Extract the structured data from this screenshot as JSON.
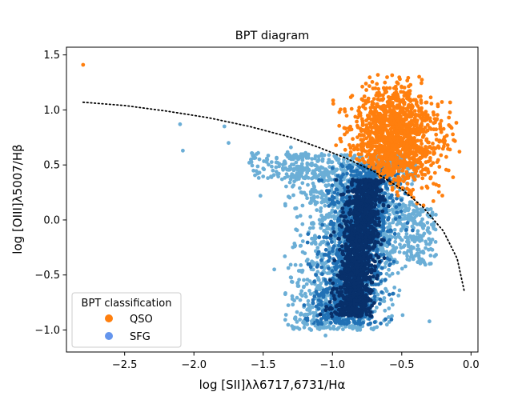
{
  "chart_data": {
    "type": "scatter",
    "title": "BPT diagram",
    "xlabel": "log [SII]λλ6717,6731/Hα",
    "ylabel": "log [OIII]λ5007/Hβ",
    "xlim": [
      -2.92,
      0.05
    ],
    "ylim": [
      -1.2,
      1.57
    ],
    "xticks": [
      -2.5,
      -2.0,
      -1.5,
      -1.0,
      -0.5,
      0.0
    ],
    "xtick_labels": [
      "−2.5",
      "−2.0",
      "−1.5",
      "−1.0",
      "−0.5",
      "0.0"
    ],
    "yticks": [
      -1.0,
      -0.5,
      0.0,
      0.5,
      1.0,
      1.5
    ],
    "ytick_labels": [
      "−1.0",
      "−0.5",
      "0.0",
      "0.5",
      "1.0",
      "1.5"
    ],
    "grid": false,
    "legend": {
      "title": "BPT classification",
      "placement": "lower-left"
    },
    "series": [
      {
        "name": "QSO",
        "color": "#ff7f0e",
        "cloud": {
          "center": [
            -0.55,
            0.75
          ],
          "spread": [
            0.16,
            0.24
          ],
          "extent_x": [
            -1.0,
            -0.02
          ],
          "extent_y": [
            0.08,
            1.32
          ]
        },
        "outliers": [
          [
            -2.8,
            1.41
          ],
          [
            -0.78,
            1.03
          ],
          [
            -0.95,
            0.98
          ],
          [
            -0.7,
            1.1
          ]
        ]
      },
      {
        "name": "SFG",
        "color": "#6495ed",
        "density_colors": [
          "#6baed6",
          "#2171b5",
          "#08306b"
        ],
        "cloud": {
          "ridge_x": [
            -0.95,
            -0.7
          ],
          "extent_x": [
            -1.3,
            -0.25
          ],
          "extent_y": [
            -1.0,
            0.6
          ]
        },
        "outliers": [
          [
            -2.1,
            0.87
          ],
          [
            -2.08,
            0.63
          ],
          [
            -1.78,
            0.85
          ],
          [
            -1.6,
            0.52
          ],
          [
            -1.52,
            0.22
          ],
          [
            -1.42,
            -0.45
          ],
          [
            -1.25,
            -0.6
          ],
          [
            -1.15,
            -0.92
          ],
          [
            -1.05,
            -1.05
          ],
          [
            -1.3,
            0.66
          ],
          [
            -1.75,
            0.7
          ]
        ]
      }
    ],
    "demarcation": {
      "style": "dotted",
      "color": "#000000",
      "x": [
        -2.8,
        -2.5,
        -2.2,
        -1.9,
        -1.6,
        -1.3,
        -1.1,
        -0.9,
        -0.7,
        -0.5,
        -0.35,
        -0.2,
        -0.1,
        -0.05
      ],
      "y": [
        1.07,
        1.04,
        0.99,
        0.93,
        0.85,
        0.75,
        0.66,
        0.56,
        0.44,
        0.28,
        0.12,
        -0.1,
        -0.35,
        -0.64
      ]
    }
  }
}
